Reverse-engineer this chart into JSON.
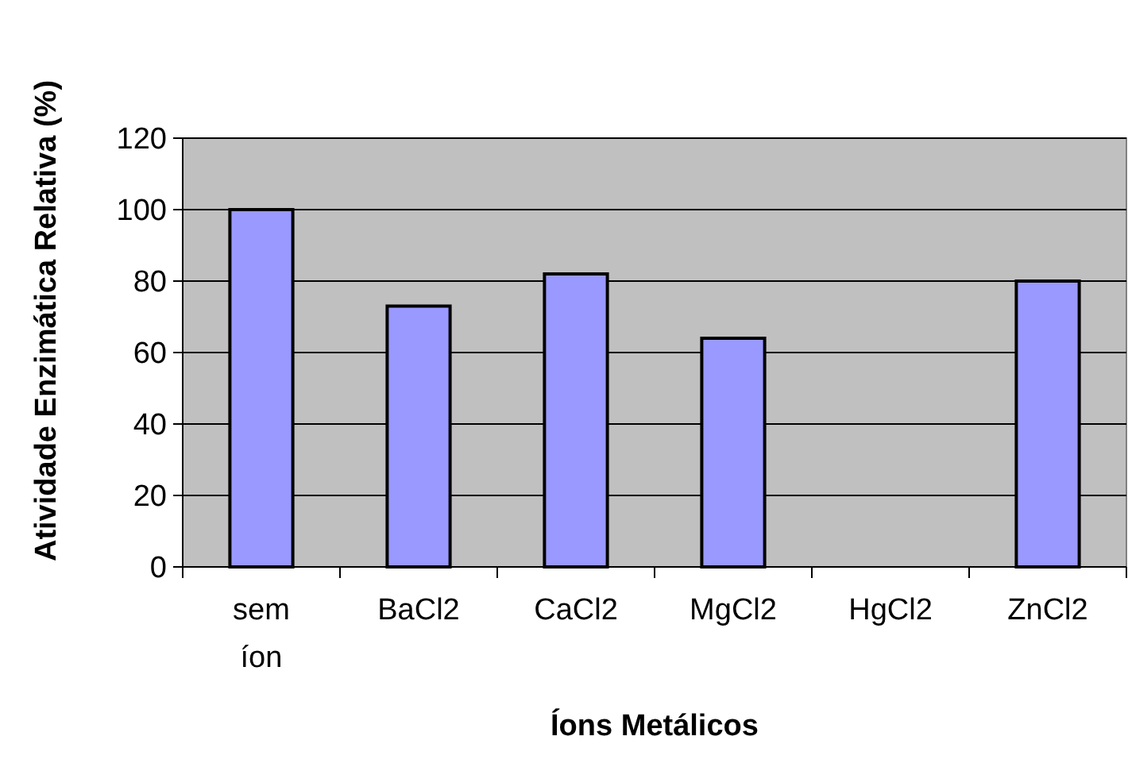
{
  "chart_data": {
    "type": "bar",
    "xlabel": "Íons Metálicos",
    "ylabel": "Atividade Enzimática Relativa (%)",
    "categories": [
      "sem íon",
      "BaCl2",
      "CaCl2",
      "MgCl2",
      "HgCl2",
      "ZnCl2"
    ],
    "values": [
      100,
      73,
      82,
      64,
      0,
      80
    ],
    "color": "#9999ff",
    "ylim": [
      0,
      120
    ],
    "yticks": [
      0,
      20,
      40,
      60,
      80,
      100,
      120
    ],
    "grid": "y"
  }
}
